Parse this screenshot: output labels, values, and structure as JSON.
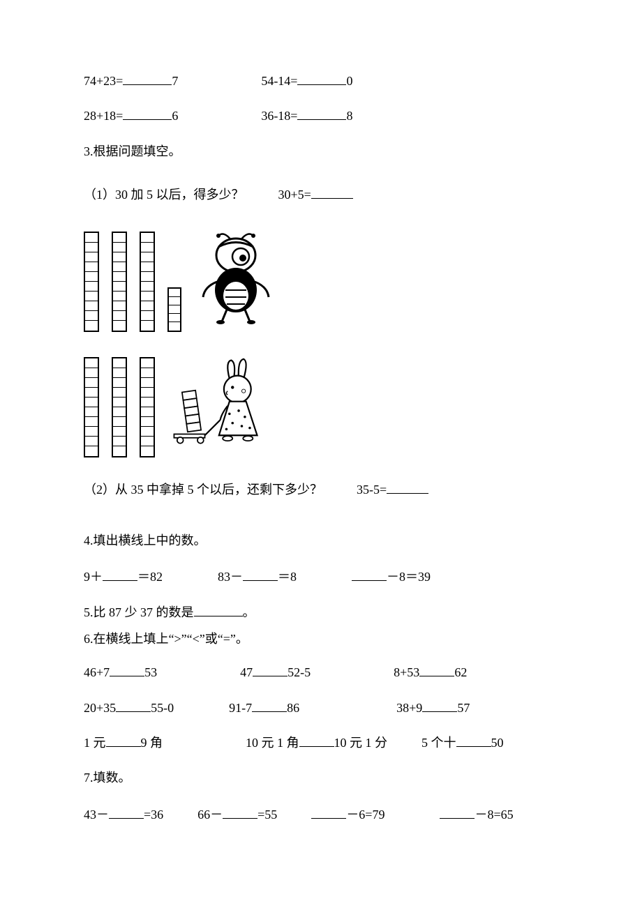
{
  "row1": {
    "eq1": "74+23=",
    "eq1_suffix": "7",
    "eq2": "54-14=",
    "eq2_suffix": "0"
  },
  "row2": {
    "eq1": "28+18=",
    "eq1_suffix": "6",
    "eq2": "36-18=",
    "eq2_suffix": "8"
  },
  "section3": {
    "title": "3.根据问题填空。",
    "q1_text": "（1）30 加 5 以后，得多少？",
    "q1_eq": "30+5=",
    "q2_text": "（2）从 35 中拿掉 5 个以后，还剩下多少？",
    "q2_eq": "35-5="
  },
  "illustration": {
    "ant_stacks": [
      10,
      10,
      10,
      5
    ],
    "rabbit_stacks": [
      10,
      10,
      10,
      5
    ]
  },
  "section4": {
    "title": "4.填出横线上中的数。",
    "eq1_pre": "9＋",
    "eq1_suf": "＝82",
    "eq2_pre": "83－",
    "eq2_suf": "＝8",
    "eq3_pre": "",
    "eq3_suf": "－8＝39"
  },
  "section5": {
    "text_pre": "5.比 87 少 37 的数是",
    "text_suf": "。"
  },
  "section6": {
    "title": "6.在横线上填上“>”“<”或“=”。",
    "r1c1_a": "46+7",
    "r1c1_b": "53",
    "r1c2_a": "47",
    "r1c2_b": "52-5",
    "r1c3_a": "8+53",
    "r1c3_b": "62",
    "r2c1_a": "20+35",
    "r2c1_b": "55-0",
    "r2c2_a": "91-7",
    "r2c2_b": "86",
    "r2c3_a": "38+9",
    "r2c3_b": "57",
    "r3c1_a": "1 元",
    "r3c1_b": "9 角",
    "r3c2_a": "10 元 1 角",
    "r3c2_b": "10 元 1 分",
    "r3c3_a": "5 个十",
    "r3c3_b": "50"
  },
  "section7": {
    "title": "7.填数。",
    "eq1_pre": "43－",
    "eq1_suf": "=36",
    "eq2_pre": "66－",
    "eq2_suf": "=55",
    "eq3_pre": "",
    "eq3_suf": "－6=79",
    "eq4_pre": "",
    "eq4_suf": "－8=65"
  },
  "colors": {
    "text": "#000000",
    "background": "#ffffff",
    "underline": "#000000"
  },
  "typography": {
    "font_family": "SimSun",
    "font_size_pt": 13
  }
}
